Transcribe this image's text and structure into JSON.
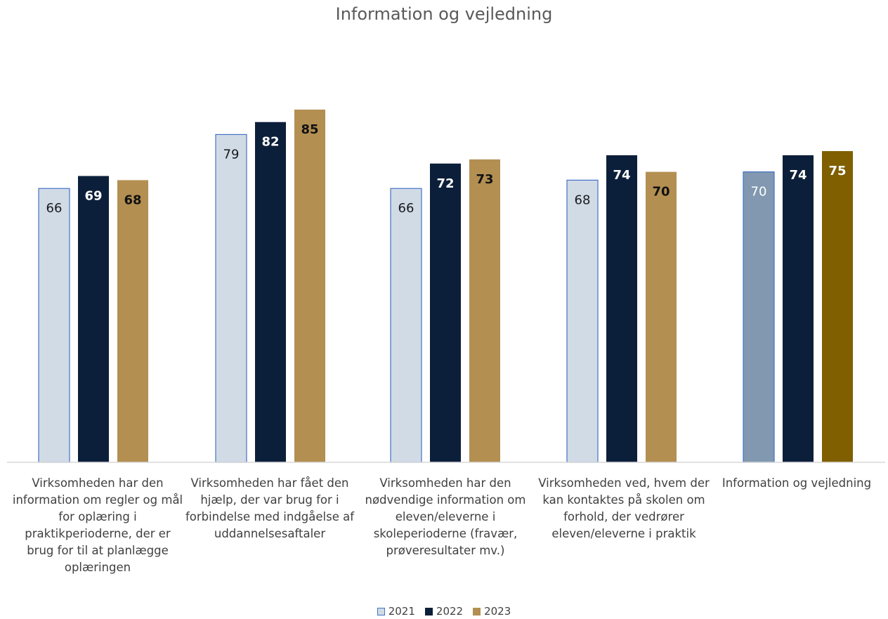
{
  "chart_data": {
    "type": "bar",
    "title": "Information og vejledning",
    "categories": [
      "Virksomheden har den information om regler og mål for oplæring i praktikperioderne, der er brug for til at planlægge oplæringen",
      "Virksomheden har fået den hjælp, der var brug for i forbindelse med indgåelse af uddannelsesaftaler",
      "Virksomheden har den nødvendige information om eleven/eleverne i skoleperioderne (fravær, prøveresultater mv.)",
      "Virksomheden ved, hvem der kan kontaktes på skolen om forhold, der vedrører eleven/eleverne i praktik",
      "Information og vejledning"
    ],
    "series": [
      {
        "name": "2021",
        "values": [
          66,
          79,
          66,
          68,
          70
        ],
        "color": "#d0dbe6",
        "border": "#4472c4"
      },
      {
        "name": "2022",
        "values": [
          69,
          82,
          72,
          74,
          74
        ],
        "color": "#0c1f3a"
      },
      {
        "name": "2023",
        "values": [
          68,
          85,
          73,
          70,
          75
        ],
        "color": "#b38f52"
      }
    ],
    "highlight_colors": {
      "2021": "#8298b0",
      "2023": "#7f5f00"
    },
    "ylim": [
      0,
      85
    ],
    "grid": false,
    "legend_position": "bottom"
  }
}
